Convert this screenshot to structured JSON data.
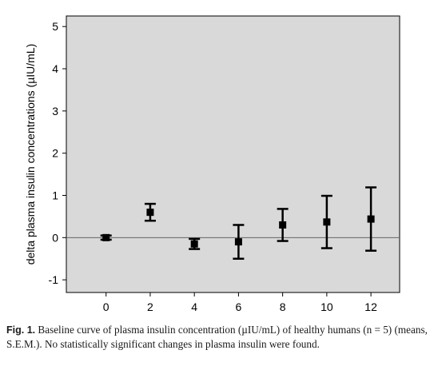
{
  "chart_data": {
    "type": "scatter",
    "x": [
      0,
      2,
      4,
      6,
      8,
      10,
      12
    ],
    "y": [
      0.0,
      0.6,
      -0.15,
      -0.1,
      0.3,
      0.37,
      0.44
    ],
    "error": [
      0.05,
      0.2,
      0.12,
      0.4,
      0.38,
      0.62,
      0.75
    ],
    "xticks": [
      "0",
      "2",
      "4",
      "6",
      "8",
      "10",
      "12"
    ],
    "yticks": [
      "-1",
      "0",
      "1",
      "2",
      "3",
      "4",
      "5"
    ],
    "xlim": [
      -1.8,
      13.3
    ],
    "ylim": [
      -1.3,
      5.25
    ],
    "reference_line": 0,
    "xlabel": "",
    "ylabel": "delta plasma insulin concentrations (µIU/mL)",
    "plot_background": "#d9d9d9",
    "grid": false
  },
  "caption": {
    "fig_label": "Fig. 1.",
    "text": "Baseline curve of plasma insulin concentration (µIU/mL) of healthy humans (n = 5) (means, S.E.M.). No statistically significant changes in plasma insulin were found."
  }
}
